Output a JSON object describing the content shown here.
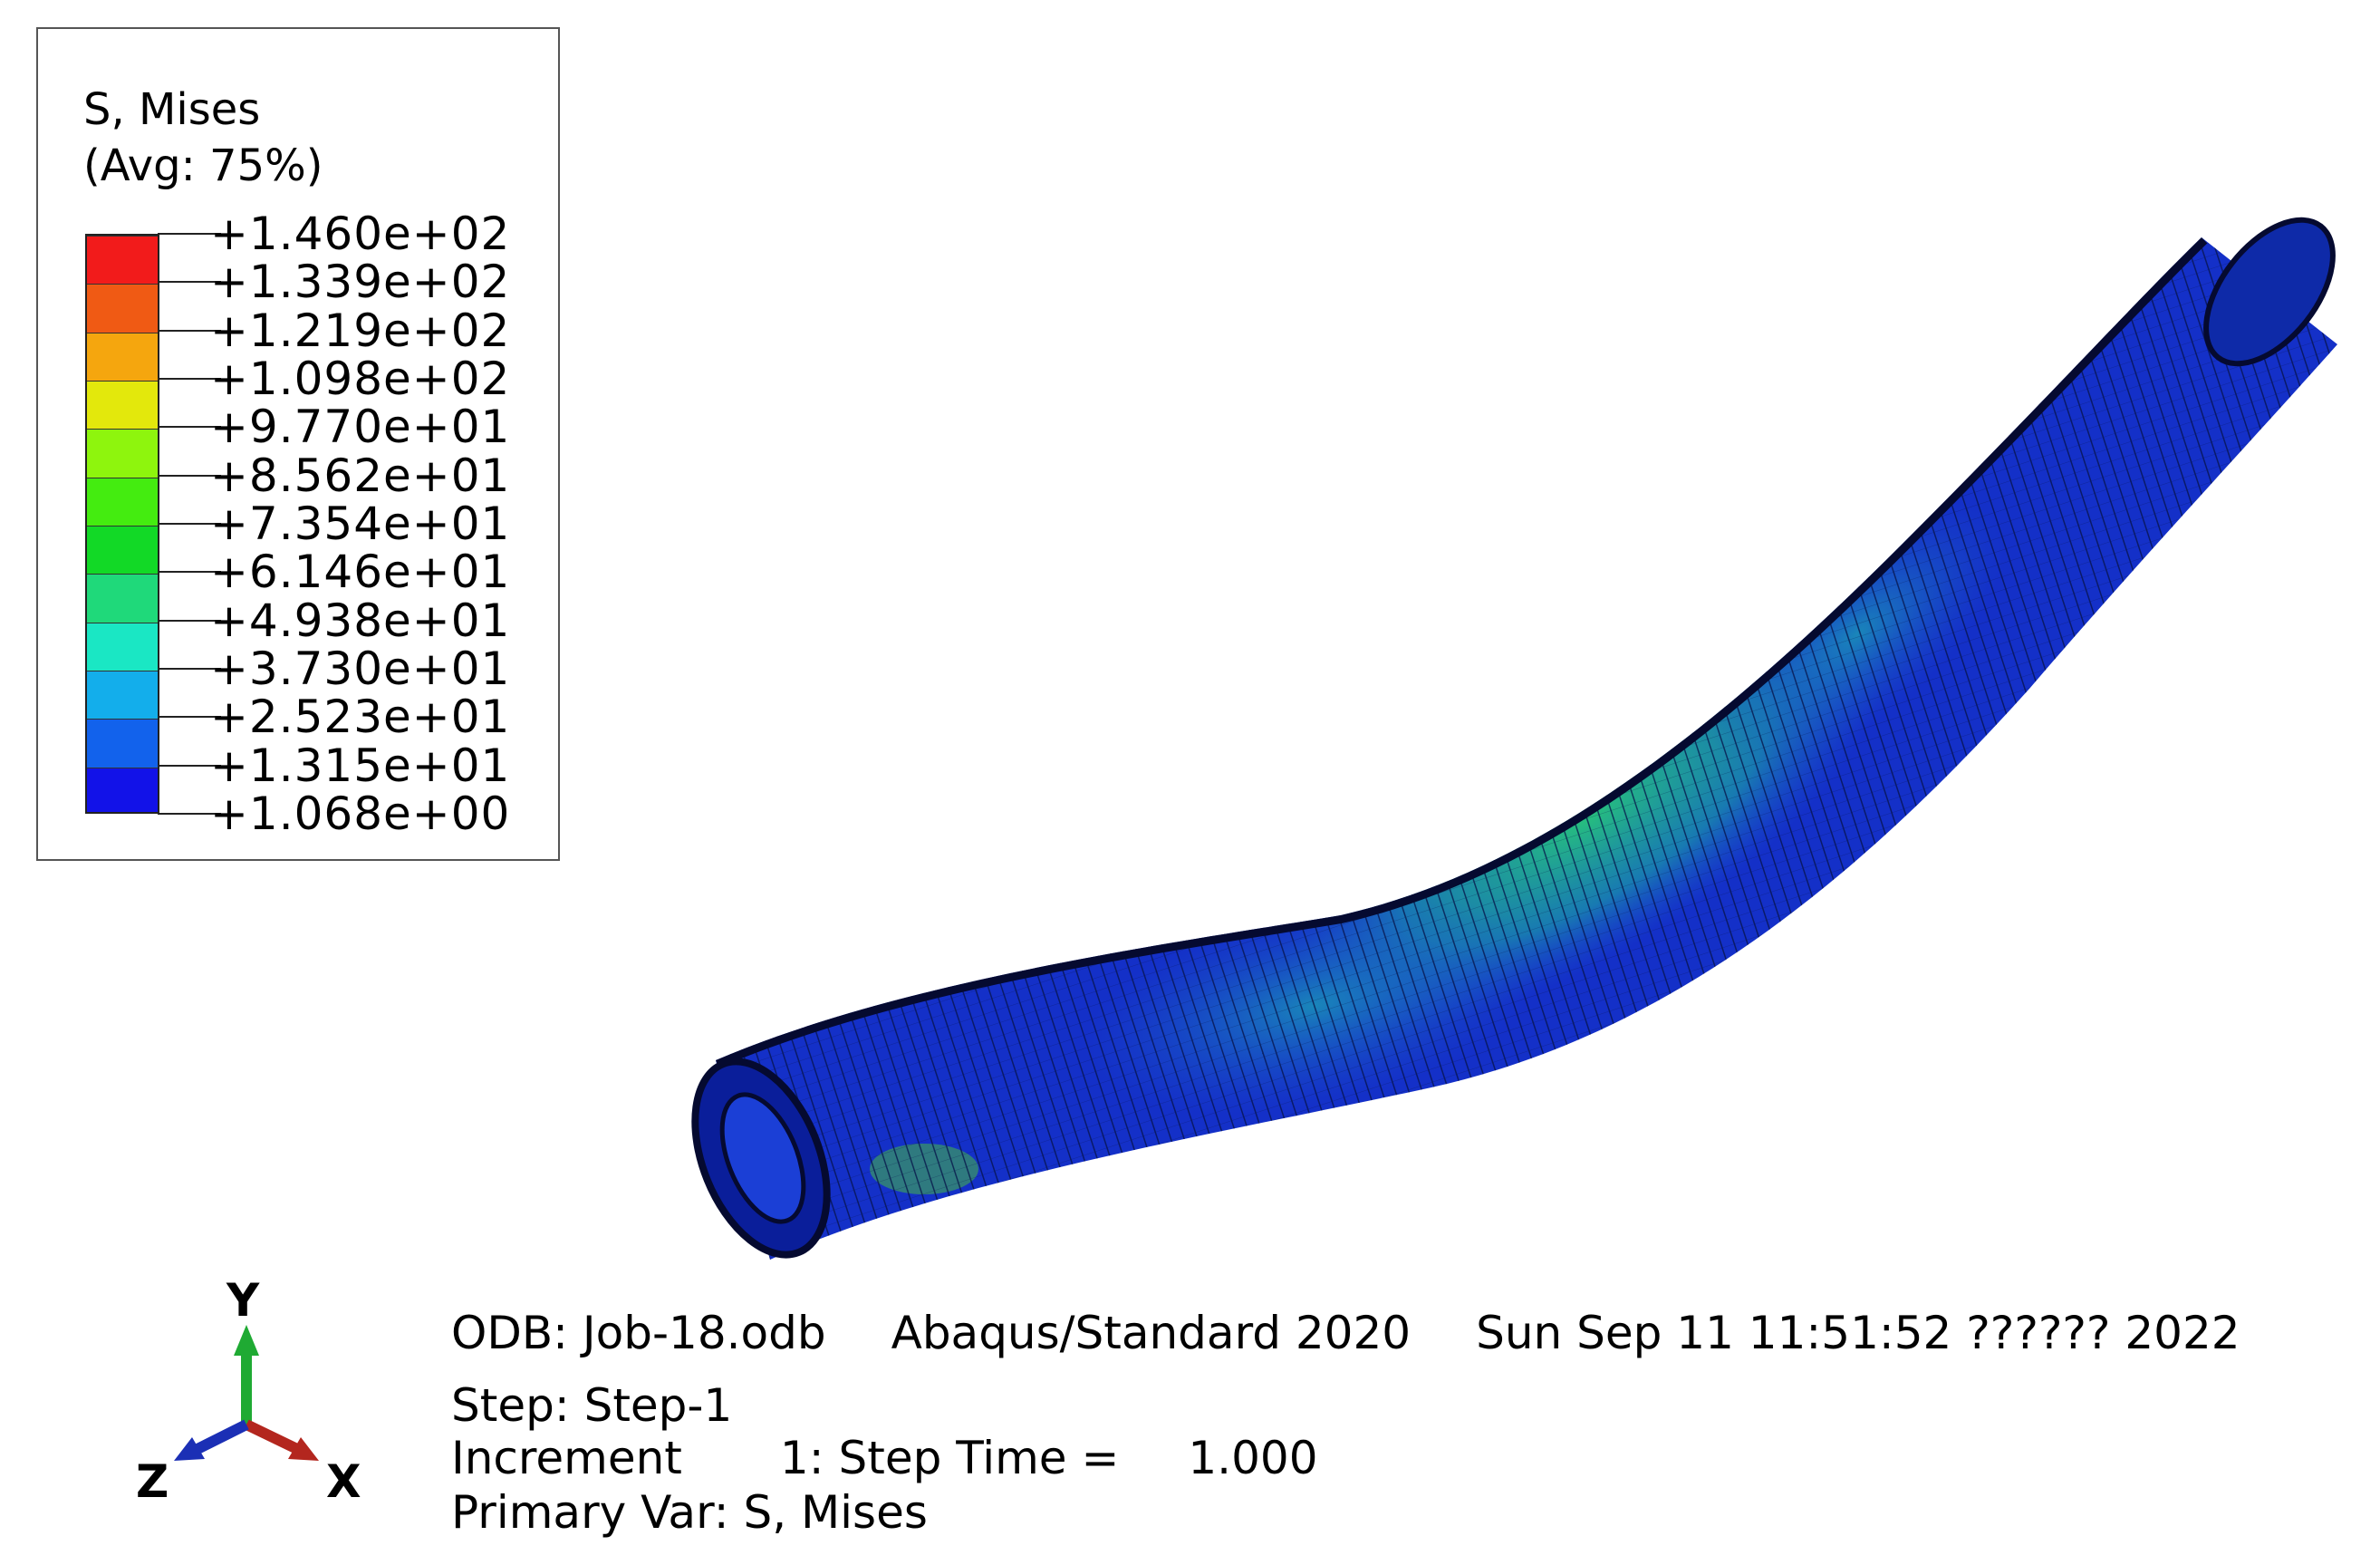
{
  "legend": {
    "title_line1": "S, Mises",
    "title_line2": "(Avg: 75%)",
    "entries": [
      {
        "label": "+1.460e+02",
        "color": "#f21b1b"
      },
      {
        "label": "+1.339e+02",
        "color": "#f05a14"
      },
      {
        "label": "+1.219e+02",
        "color": "#f5a60e"
      },
      {
        "label": "+1.098e+02",
        "color": "#e3e80c"
      },
      {
        "label": "+9.770e+01",
        "color": "#8ef50d"
      },
      {
        "label": "+8.562e+01",
        "color": "#44ec10"
      },
      {
        "label": "+7.354e+01",
        "color": "#12d926"
      },
      {
        "label": "+6.146e+01",
        "color": "#1fd97a"
      },
      {
        "label": "+4.938e+01",
        "color": "#1ae7c4"
      },
      {
        "label": "+3.730e+01",
        "color": "#13aeeb"
      },
      {
        "label": "+2.523e+01",
        "color": "#1262ec"
      },
      {
        "label": "+1.315e+01",
        "color": "#1212e8"
      }
    ],
    "min_label": "+1.068e+00"
  },
  "triad": {
    "y_label": "Y",
    "x_label": "X",
    "z_label": "Z",
    "y_color": "#1faa33",
    "x_color": "#b3261e",
    "z_color": "#1b2fb5"
  },
  "info": {
    "odb": "ODB: Job-18.odb",
    "solver": "Abaqus/Standard 2020",
    "date": "Sun Sep 11 11:51:52 ?????? 2022",
    "step": "Step: Step-1",
    "increment_label": "Increment",
    "increment_value": "1: Step Time =",
    "step_time": "1.000",
    "primary_var": "Primary Var: S, Mises"
  }
}
